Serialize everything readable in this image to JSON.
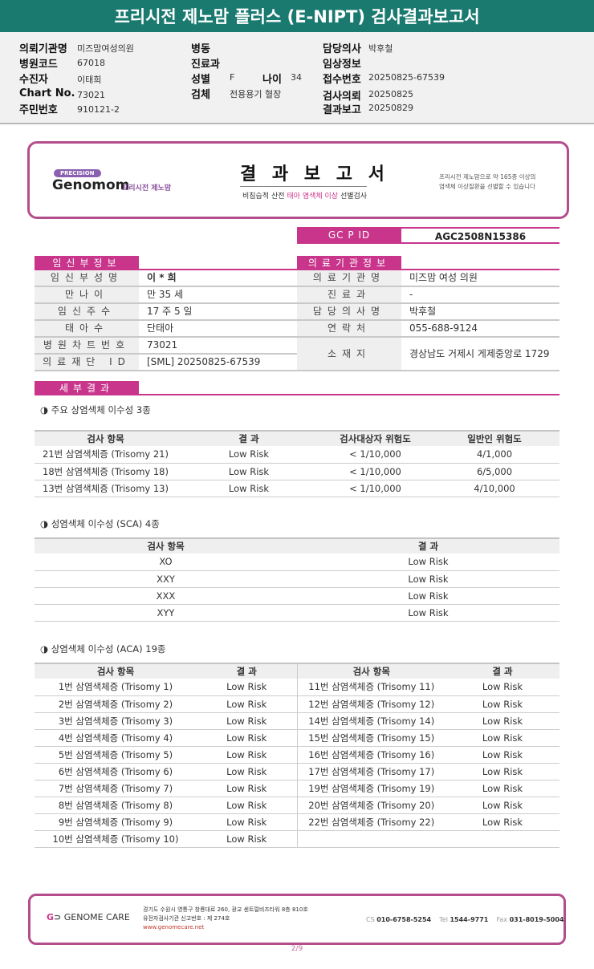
{
  "title": "프리시전 제노맘 플러스 (E-NIPT) 검사결과보고서",
  "header": {
    "institution_label": "의뢰기관명",
    "institution": "미즈맘여성의원",
    "hospital_code_label": "병원코드",
    "hospital_code": "67018",
    "patient_label": "수진자",
    "patient": "이태희",
    "chart_label": "Chart No.",
    "chart": "73021",
    "rrn_label": "주민번호",
    "rrn": "910121-2",
    "ward_label": "병동",
    "dept_label": "진료과",
    "sex_label": "성별",
    "sex": "F",
    "age_label": "나이",
    "age": "34",
    "specimen_label": "검체",
    "specimen": "전용용기 혈장",
    "doctor_label": "담당의사",
    "doctor": "박후철",
    "clinical_label": "임상정보",
    "receipt_label": "접수번호",
    "receipt": "20250825-67539",
    "request_label": "검사의뢰",
    "request": "20250825",
    "report_label": "결과보고",
    "report": "20250829"
  },
  "banner": {
    "badge": "PRECISION",
    "brand": "Genomom",
    "brand_sub": "프리시전 제노맘",
    "title": "결 과 보 고 서",
    "subtitle_a": "비침습적 산전 ",
    "subtitle_b": "태아 염색체 이상",
    "subtitle_c": " 선별검사",
    "right_1": "프리시전 제노맘으로 약 165종 이상의",
    "right_2": "염색체 이상질환을 선별할 수 있습니다"
  },
  "gcpid": {
    "label": "GC P ID",
    "value": "AGC2508N15386"
  },
  "pregnant": {
    "title": "임신부정보",
    "rows": [
      [
        "임신부성명",
        "이 * 희"
      ],
      [
        "만나이",
        "만 35 세"
      ],
      [
        "임신주수",
        "17 주 5 일"
      ],
      [
        "태아수",
        "단태아"
      ],
      [
        "병원차트번호",
        "73021"
      ],
      [
        "의료재단 ID",
        "[SML] 20250825-67539"
      ]
    ]
  },
  "medical": {
    "title": "의료기관정보",
    "rows": [
      [
        "의료기관명",
        "미즈맘 여성 의원"
      ],
      [
        "진료과",
        "-"
      ],
      [
        "담당의사명",
        "박후철"
      ],
      [
        "연락처",
        "055-688-9124"
      ],
      [
        "소재지",
        "경상남도 거제시 게제중앙로 1729"
      ]
    ]
  },
  "detail_title": "세부결과",
  "major": {
    "title": "◑ 주요 상염색체 이수성 3종",
    "headers": [
      "검사 항목",
      "결 과",
      "검사대상자 위험도",
      "일반인 위험도"
    ],
    "rows": [
      [
        "21번 삼염색체증 (Trisomy 21)",
        "Low Risk",
        "< 1/10,000",
        "4/1,000"
      ],
      [
        "18번 삼염색체증 (Trisomy 18)",
        "Low Risk",
        "< 1/10,000",
        "6/5,000"
      ],
      [
        "13번 삼염색체증 (Trisomy 13)",
        "Low Risk",
        "< 1/10,000",
        "4/10,000"
      ]
    ]
  },
  "sca": {
    "title": "◑ 성염색체 이수성 (SCA) 4종",
    "headers": [
      "검사 항목",
      "결 과"
    ],
    "rows": [
      [
        "XO",
        "Low Risk"
      ],
      [
        "XXY",
        "Low Risk"
      ],
      [
        "XXX",
        "Low Risk"
      ],
      [
        "XYY",
        "Low Risk"
      ]
    ]
  },
  "aca": {
    "title": "◑ 상염색체 이수성 (ACA) 19종",
    "headers": [
      "검사 항목",
      "결 과",
      "검사 항목",
      "결 과"
    ],
    "rows": [
      [
        "1번 삼염색체증 (Trisomy 1)",
        "Low Risk",
        "11번 삼염색체증 (Trisomy 11)",
        "Low Risk"
      ],
      [
        "2번 삼염색체증 (Trisomy 2)",
        "Low Risk",
        "12번 삼염색체증 (Trisomy 12)",
        "Low Risk"
      ],
      [
        "3번 삼염색체증 (Trisomy 3)",
        "Low Risk",
        "14번 삼염색체증 (Trisomy 14)",
        "Low Risk"
      ],
      [
        "4번 삼염색체증 (Trisomy 4)",
        "Low Risk",
        "15번 삼염색체증 (Trisomy 15)",
        "Low Risk"
      ],
      [
        "5번 삼염색체증 (Trisomy 5)",
        "Low Risk",
        "16번 삼염색체증 (Trisomy 16)",
        "Low Risk"
      ],
      [
        "6번 삼염색체증 (Trisomy 6)",
        "Low Risk",
        "17번 삼염색체증 (Trisomy 17)",
        "Low Risk"
      ],
      [
        "7번 삼염색체증 (Trisomy 7)",
        "Low Risk",
        "19번 삼염색체증 (Trisomy 19)",
        "Low Risk"
      ],
      [
        "8번 삼염색체증 (Trisomy 8)",
        "Low Risk",
        "20번 삼염색체증 (Trisomy 20)",
        "Low Risk"
      ],
      [
        "9번 삼염색체증 (Trisomy 9)",
        "Low Risk",
        "22번 삼염색체증 (Trisomy 22)",
        "Low Risk"
      ],
      [
        "10번 삼염색체증 (Trisomy 10)",
        "Low Risk",
        "",
        ""
      ]
    ]
  },
  "footer": {
    "logo": "GENOME CARE",
    "addr1": "경기도 수원시 영통구 창룡대로 260, 광교 센트럴비즈타워 8층 810호",
    "addr2": "유전자검사기관 신고번호 : 제 274호",
    "web": "www.genomecare.net",
    "cs_label": "CS",
    "cs": "010-6758-5254",
    "tel_label": "Tel",
    "tel": "1544-9771",
    "fax_label": "Fax",
    "fax": "031-8019-5004"
  },
  "page": "2/9",
  "colors": {
    "teal": "#1b7a70",
    "pink": "#c8358b"
  }
}
